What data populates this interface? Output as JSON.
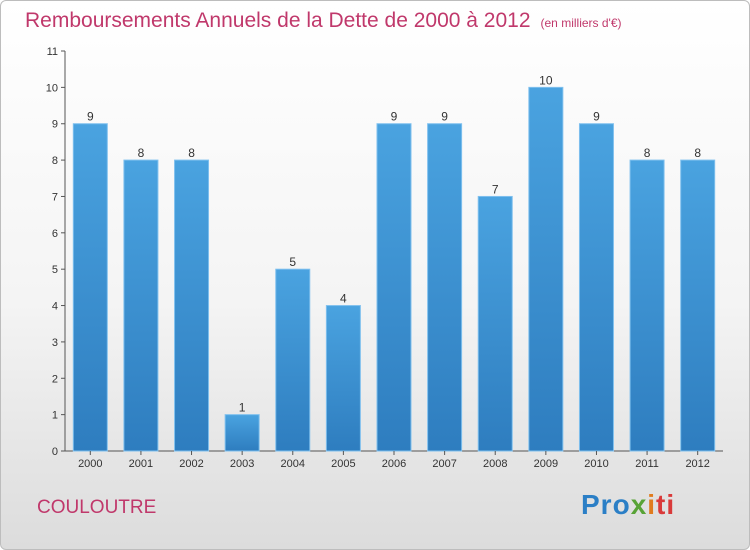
{
  "title": "Remboursements Annuels de la Dette de 2000 à 2012",
  "unit": "(en milliers d'€)",
  "commune": "COULOUTRE",
  "logo": {
    "part1": "Pro",
    "part2": "x",
    "part3": "i",
    "part4": "ti"
  },
  "colors": {
    "bar": "#4aa3e0",
    "bar_dark": "#2e7dbf",
    "title": "#c0386b"
  },
  "chart_data": {
    "type": "bar",
    "categories": [
      "2000",
      "2001",
      "2002",
      "2003",
      "2004",
      "2005",
      "2006",
      "2007",
      "2008",
      "2009",
      "2010",
      "2011",
      "2012"
    ],
    "values": [
      9,
      8,
      8,
      1,
      5,
      4,
      9,
      9,
      7,
      10,
      9,
      8,
      8
    ],
    "ylim": [
      0,
      11
    ],
    "yticks": [
      0,
      1,
      2,
      3,
      4,
      5,
      6,
      7,
      8,
      9,
      10,
      11
    ],
    "grid": false
  }
}
